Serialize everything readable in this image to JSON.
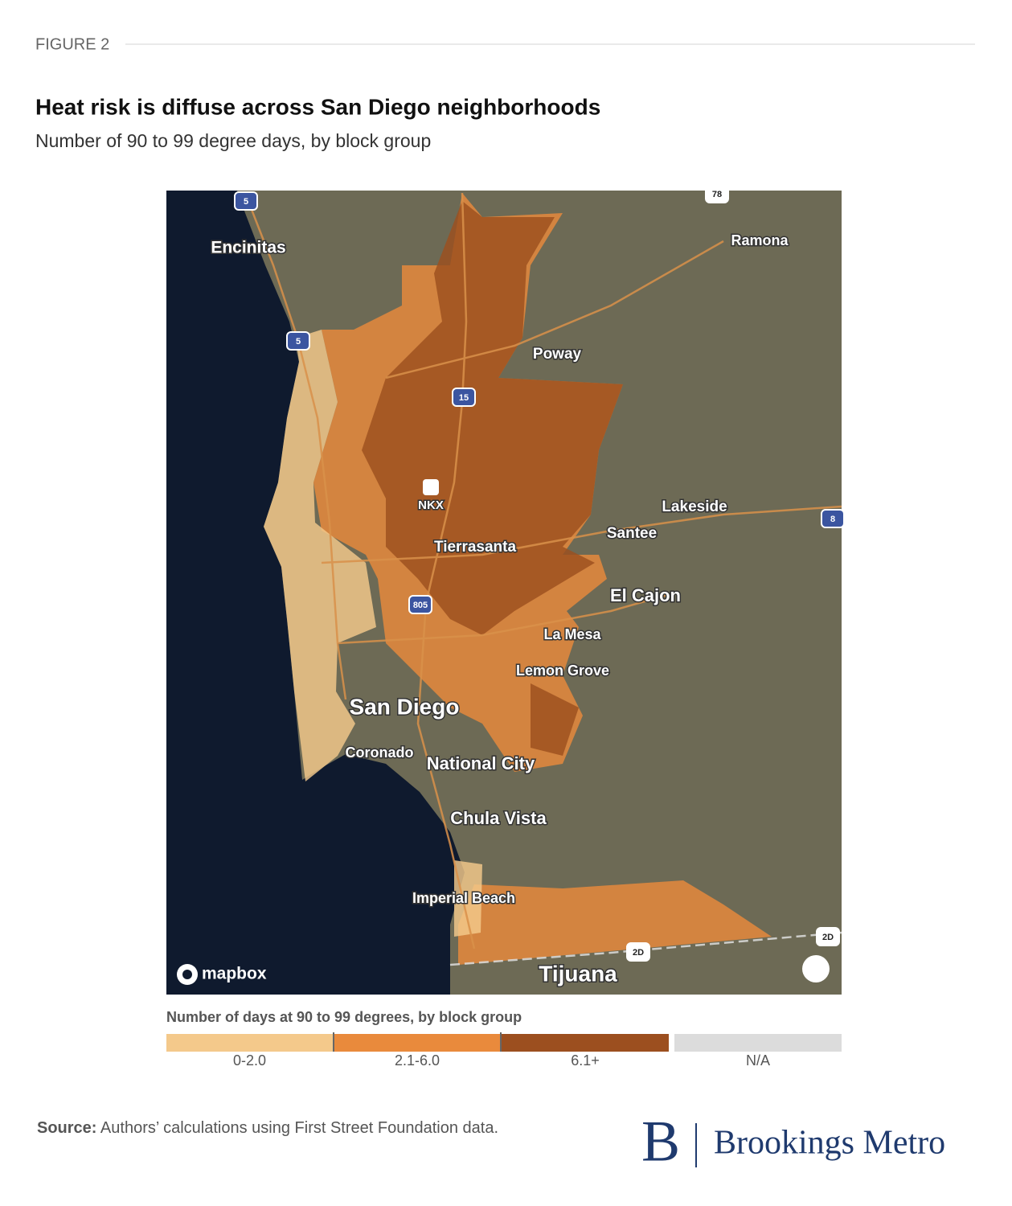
{
  "header": {
    "figure": "FIGURE 2",
    "title": "Heat risk is diffuse across San Diego neighborhoods",
    "subtitle": "Number of 90 to 99 degree days, by block group"
  },
  "map": {
    "places": [
      "Encinitas",
      "Ramona",
      "Poway",
      "NKX",
      "Lakeside",
      "Santee",
      "Tierrasanta",
      "El Cajon",
      "La Mesa",
      "Lemon Grove",
      "San Diego",
      "Coronado",
      "National City",
      "Chula Vista",
      "Imperial Beach",
      "Tijuana"
    ],
    "shields": [
      "5",
      "5",
      "15",
      "805",
      "8",
      "78",
      "2D",
      "2D"
    ],
    "attribution": "mapbox"
  },
  "legend": {
    "title": "Number of days at 90 to 99 degrees, by block group",
    "items": [
      {
        "label": "0-2.0",
        "color": "#f4c98b"
      },
      {
        "label": "2.1-6.0",
        "color": "#e98a3c"
      },
      {
        "label": "6.1+",
        "color": "#9c4f1f"
      },
      {
        "label": "N/A",
        "color": "#dcdcdc"
      }
    ]
  },
  "footer": {
    "source_label": "Source:",
    "source_text": "Authors’ calculations using First Street Foundation data.",
    "logo_mark": "B",
    "logo_text": "Brookings Metro"
  }
}
